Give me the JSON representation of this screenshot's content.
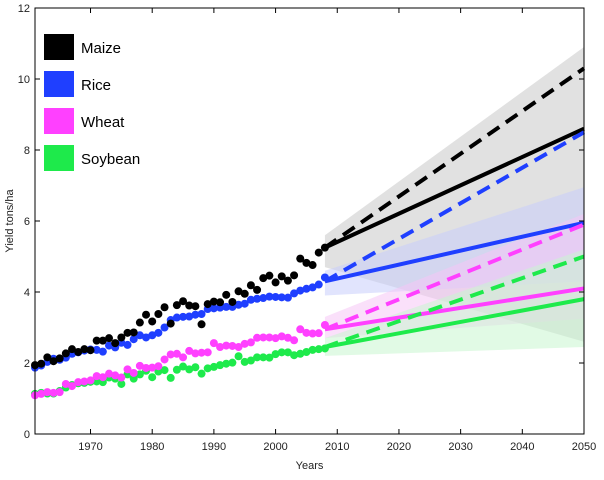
{
  "chart_data": {
    "type": "line",
    "xlabel": "Years",
    "ylabel": "Yield tons/ha",
    "xlim": [
      1961,
      2050
    ],
    "ylim": [
      0,
      12
    ],
    "x_ticks": [
      1970,
      1980,
      1990,
      2000,
      2010,
      2020,
      2030,
      2040,
      2050
    ],
    "y_ticks": [
      0,
      2,
      4,
      6,
      8,
      10,
      12
    ],
    "legend_position": "top-left",
    "grid": false,
    "series": [
      {
        "name": "Maize",
        "color": "#000000",
        "band_color": "#c8c8c8",
        "observed_x": [
          1961,
          1962,
          1963,
          1964,
          1965,
          1966,
          1967,
          1968,
          1969,
          1970,
          1971,
          1972,
          1973,
          1974,
          1975,
          1976,
          1977,
          1978,
          1979,
          1980,
          1981,
          1982,
          1983,
          1984,
          1985,
          1986,
          1987,
          1988,
          1989,
          1990,
          1991,
          1992,
          1993,
          1994,
          1995,
          1996,
          1997,
          1998,
          1999,
          2000,
          2001,
          2002,
          2003,
          2004,
          2005,
          2006,
          2007,
          2008
        ],
        "observed_y": [
          1.94,
          1.98,
          2.16,
          2.05,
          2.13,
          2.27,
          2.39,
          2.31,
          2.39,
          2.36,
          2.63,
          2.63,
          2.7,
          2.56,
          2.72,
          2.85,
          2.86,
          3.14,
          3.36,
          3.17,
          3.38,
          3.57,
          3.11,
          3.63,
          3.74,
          3.62,
          3.6,
          3.09,
          3.66,
          3.73,
          3.71,
          3.92,
          3.72,
          4.02,
          3.95,
          4.19,
          4.06,
          4.39,
          4.46,
          4.27,
          4.44,
          4.32,
          4.47,
          4.94,
          4.82,
          4.76,
          5.11,
          5.25
        ],
        "projection_x": [
          2008,
          2050
        ],
        "projection_solid": [
          5.25,
          8.6
        ],
        "projection_dashed": [
          5.25,
          10.3
        ],
        "band_lower": [
          4.7,
          2.6
        ],
        "band_upper": [
          5.6,
          10.9
        ]
      },
      {
        "name": "Rice",
        "color": "#1f3fff",
        "band_color": "#c9cdfb",
        "observed_x": [
          1961,
          1962,
          1963,
          1964,
          1965,
          1966,
          1967,
          1968,
          1969,
          1970,
          1971,
          1972,
          1973,
          1974,
          1975,
          1976,
          1977,
          1978,
          1979,
          1980,
          1981,
          1982,
          1983,
          1984,
          1985,
          1986,
          1987,
          1988,
          1989,
          1990,
          1991,
          1992,
          1993,
          1994,
          1995,
          1996,
          1997,
          1998,
          1999,
          2000,
          2001,
          2002,
          2003,
          2004,
          2005,
          2006,
          2007,
          2008
        ],
        "observed_y": [
          1.87,
          1.93,
          2.03,
          2.12,
          2.09,
          2.15,
          2.26,
          2.3,
          2.35,
          2.38,
          2.37,
          2.32,
          2.49,
          2.44,
          2.57,
          2.51,
          2.67,
          2.78,
          2.72,
          2.78,
          2.85,
          3.0,
          3.21,
          3.28,
          3.3,
          3.31,
          3.36,
          3.38,
          3.52,
          3.54,
          3.56,
          3.58,
          3.58,
          3.64,
          3.67,
          3.78,
          3.81,
          3.83,
          3.87,
          3.86,
          3.85,
          3.84,
          3.96,
          4.04,
          4.09,
          4.13,
          4.21,
          4.41
        ],
        "projection_x": [
          2008,
          2050
        ],
        "projection_solid": [
          4.3,
          5.95
        ],
        "projection_dashed": [
          4.3,
          8.5
        ],
        "band_lower": [
          3.9,
          4.3
        ],
        "band_upper": [
          4.6,
          6.95
        ]
      },
      {
        "name": "Wheat",
        "color": "#ff40ff",
        "band_color": "#f5c6f5",
        "observed_x": [
          1961,
          1962,
          1963,
          1964,
          1965,
          1966,
          1967,
          1968,
          1969,
          1970,
          1971,
          1972,
          1973,
          1974,
          1975,
          1976,
          1977,
          1978,
          1979,
          1980,
          1981,
          1982,
          1983,
          1984,
          1985,
          1986,
          1987,
          1988,
          1989,
          1990,
          1991,
          1992,
          1993,
          1994,
          1995,
          1996,
          1997,
          1998,
          1999,
          2000,
          2001,
          2002,
          2003,
          2004,
          2005,
          2006,
          2007,
          2008
        ],
        "observed_y": [
          1.09,
          1.13,
          1.18,
          1.16,
          1.18,
          1.41,
          1.35,
          1.46,
          1.48,
          1.51,
          1.63,
          1.6,
          1.7,
          1.65,
          1.59,
          1.82,
          1.72,
          1.92,
          1.86,
          1.87,
          1.91,
          2.1,
          2.24,
          2.26,
          2.16,
          2.34,
          2.27,
          2.29,
          2.3,
          2.56,
          2.45,
          2.49,
          2.48,
          2.45,
          2.54,
          2.58,
          2.71,
          2.72,
          2.72,
          2.7,
          2.75,
          2.71,
          2.64,
          2.95,
          2.85,
          2.83,
          2.84,
          3.07
        ],
        "projection_x": [
          2008,
          2050
        ],
        "projection_solid": [
          2.95,
          4.1
        ],
        "projection_dashed": [
          2.95,
          5.9
        ],
        "band_lower": [
          2.7,
          3.25
        ],
        "band_upper": [
          3.3,
          6.2
        ]
      },
      {
        "name": "Soybean",
        "color": "#1eea4b",
        "band_color": "#c8f5cf",
        "observed_x": [
          1961,
          1962,
          1963,
          1964,
          1965,
          1966,
          1967,
          1968,
          1969,
          1970,
          1971,
          1972,
          1973,
          1974,
          1975,
          1976,
          1977,
          1978,
          1979,
          1980,
          1981,
          1982,
          1983,
          1984,
          1985,
          1986,
          1987,
          1988,
          1989,
          1990,
          1991,
          1992,
          1993,
          1994,
          1995,
          1996,
          1997,
          1998,
          1999,
          2000,
          2001,
          2002,
          2003,
          2004,
          2005,
          2006,
          2007,
          2008
        ],
        "observed_y": [
          1.13,
          1.16,
          1.14,
          1.14,
          1.21,
          1.31,
          1.38,
          1.43,
          1.44,
          1.47,
          1.48,
          1.46,
          1.59,
          1.56,
          1.41,
          1.68,
          1.56,
          1.68,
          1.78,
          1.6,
          1.76,
          1.8,
          1.58,
          1.81,
          1.9,
          1.82,
          1.88,
          1.7,
          1.85,
          1.89,
          1.94,
          1.98,
          2.01,
          2.19,
          2.03,
          2.07,
          2.16,
          2.16,
          2.15,
          2.25,
          2.3,
          2.3,
          2.22,
          2.26,
          2.31,
          2.37,
          2.39,
          2.41
        ],
        "projection_x": [
          2008,
          2050
        ],
        "projection_solid": [
          2.45,
          3.8
        ],
        "projection_dashed": [
          2.45,
          5.0
        ],
        "band_lower": [
          2.2,
          2.45
        ],
        "band_upper": [
          2.7,
          5.2
        ]
      }
    ]
  }
}
